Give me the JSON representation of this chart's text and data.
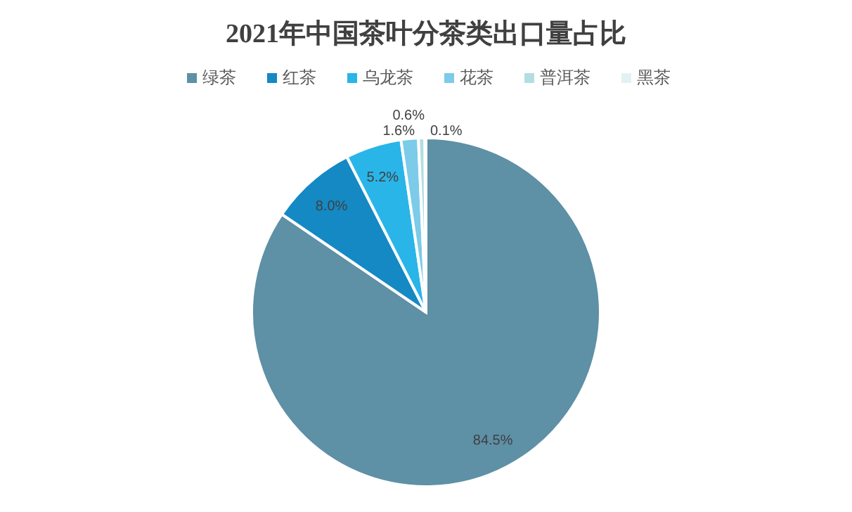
{
  "chart_data": {
    "type": "pie",
    "title": "2021年中国茶叶分茶类出口量占比",
    "categories": [
      "绿茶",
      "红茶",
      "乌龙茶",
      "花茶",
      "普洱茶",
      "黑茶"
    ],
    "values": [
      84.5,
      8.0,
      5.2,
      1.6,
      0.6,
      0.1
    ],
    "value_labels": [
      "84.5%",
      "8.0%",
      "5.2%",
      "1.6%",
      "0.6%",
      "0.1%"
    ],
    "colors": [
      "#5e90a6",
      "#1489c4",
      "#29b5e8",
      "#7ccbe9",
      "#b4dde3",
      "#e3f1f4"
    ],
    "legend": "top"
  }
}
